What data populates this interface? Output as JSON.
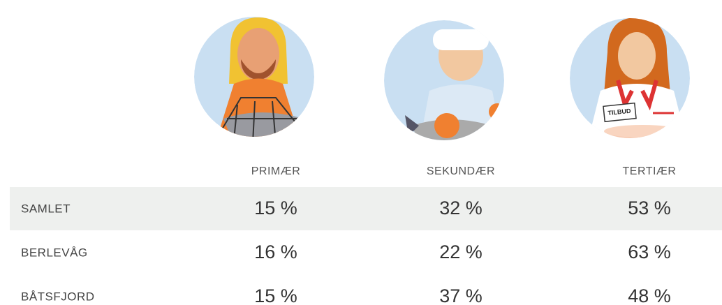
{
  "table": {
    "columns": [
      "PRIMÆR",
      "SEKUNDÆR",
      "TERTIÆR"
    ],
    "rows": [
      {
        "label": "SAMLET",
        "cells": [
          "15 %",
          "32 %",
          "53 %"
        ]
      },
      {
        "label": "BERLEVÅG",
        "cells": [
          "16 %",
          "22 %",
          "63 %"
        ]
      },
      {
        "label": "BÅTSFJORD",
        "cells": [
          "15 %",
          "37 %",
          "48 %"
        ]
      }
    ]
  },
  "illustrations": {
    "sign": "TILBUD"
  }
}
